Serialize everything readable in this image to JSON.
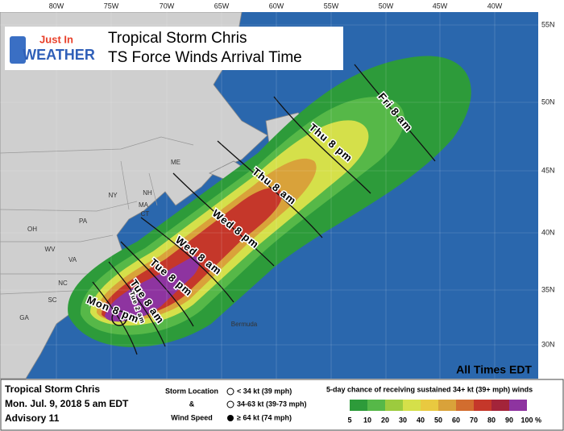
{
  "header": {
    "logo_top": "Just In",
    "logo_bottom": "WEATHER",
    "title": "Tropical Storm Chris",
    "subtitle": "TS Force Winds Arrival Time"
  },
  "longitude_labels": [
    "80W",
    "75W",
    "70W",
    "65W",
    "60W",
    "55W",
    "50W",
    "45W",
    "40W"
  ],
  "latitude_labels": [
    "55N",
    "50N",
    "45N",
    "40N",
    "35N",
    "30N"
  ],
  "place_labels": [
    "ME",
    "NY",
    "NH",
    "MA",
    "CT",
    "PA",
    "OH",
    "WV",
    "VA",
    "NC",
    "SC",
    "GA",
    "Bermuda"
  ],
  "arrival_times": [
    "Fri 8 am",
    "Thu 8 pm",
    "Thu 8 am",
    "Wed 8 pm",
    "Wed 8 am",
    "Tue 8 pm",
    "Tue 8 am",
    "Tue 2 am",
    "Mon 8 pm"
  ],
  "note": "All Times EDT",
  "footer": {
    "storm": "Tropical Storm Chris",
    "issued": "Mon. Jul. 9, 2018  5 am EDT",
    "advisory": "Advisory 11",
    "legend_title": [
      "Storm Location",
      "&",
      "Wind Speed"
    ],
    "wind_classes": [
      "< 34 kt (39 mph)",
      "34-63 kt (39-73 mph)",
      "≥ 64 kt (74 mph)"
    ],
    "scale_title": "5-day chance of receiving sustained 34+ kt (39+ mph) winds",
    "scale_values": [
      5,
      10,
      20,
      30,
      40,
      50,
      60,
      70,
      80,
      90,
      100
    ],
    "scale_unit": "%",
    "scale_colors": [
      "#2d9b3a",
      "#56b848",
      "#9ccb3e",
      "#d5e04a",
      "#e9c940",
      "#d9a23a",
      "#d26d2f",
      "#c5372a",
      "#a3243a",
      "#8e34a0"
    ]
  }
}
